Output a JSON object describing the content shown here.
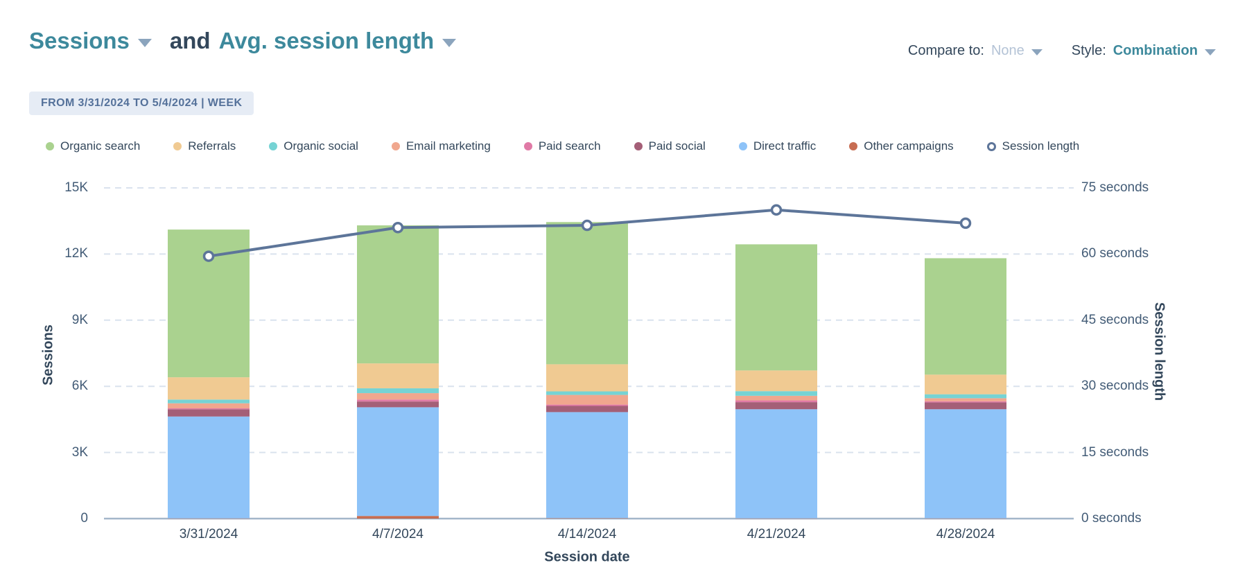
{
  "theme": {
    "accent_teal": "#3d899c",
    "text_dark": "#33475b",
    "tick_text": "#425b76",
    "muted_value": "#b4c3d6",
    "caret": "#8ba4bd",
    "badge_bg": "#e6ecf5",
    "badge_text": "#54719a",
    "gridline": "#d9e2ee",
    "axis_line": "#a3b6c9",
    "line_color": "#5d7599"
  },
  "header": {
    "metric_1": "Sessions",
    "conjunction": "and",
    "metric_2": "Avg. session length",
    "compare_label": "Compare to:",
    "compare_value": "None",
    "style_label": "Style:",
    "style_value": "Combination"
  },
  "date_range_badge": "FROM 3/31/2024 TO 5/4/2024 | WEEK",
  "legend": {
    "items": [
      {
        "label": "Organic search",
        "color": "#aad28f",
        "marker": "dot"
      },
      {
        "label": "Referrals",
        "color": "#f0ca92",
        "marker": "dot"
      },
      {
        "label": "Organic social",
        "color": "#76d3d4",
        "marker": "dot"
      },
      {
        "label": "Email marketing",
        "color": "#f0a78e",
        "marker": "dot"
      },
      {
        "label": "Paid search",
        "color": "#e07aa6",
        "marker": "dot"
      },
      {
        "label": "Paid social",
        "color": "#a45f77",
        "marker": "dot"
      },
      {
        "label": "Direct traffic",
        "color": "#8ec3f8",
        "marker": "dot"
      },
      {
        "label": "Other campaigns",
        "color": "#c76d52",
        "marker": "dot"
      },
      {
        "label": "Session length",
        "color": "#5d7599",
        "marker": "ring"
      }
    ]
  },
  "chart_data": {
    "type": "combination: stacked bar + line",
    "categories": [
      "3/31/2024",
      "4/7/2024",
      "4/14/2024",
      "4/21/2024",
      "4/28/2024"
    ],
    "bar_series_bottom_to_top": [
      {
        "name": "Other campaigns",
        "color": "#c76d52",
        "values": [
          10,
          120,
          20,
          10,
          10
        ]
      },
      {
        "name": "Direct traffic",
        "color": "#8ec3f8",
        "values": [
          4620,
          4930,
          4810,
          4950,
          4950
        ]
      },
      {
        "name": "Paid social",
        "color": "#a45f77",
        "values": [
          330,
          260,
          280,
          320,
          310
        ]
      },
      {
        "name": "Paid search",
        "color": "#e07aa6",
        "values": [
          40,
          90,
          60,
          80,
          50
        ]
      },
      {
        "name": "Email marketing",
        "color": "#f0a78e",
        "values": [
          230,
          290,
          440,
          210,
          140
        ]
      },
      {
        "name": "Organic social",
        "color": "#76d3d4",
        "values": [
          170,
          220,
          160,
          210,
          180
        ]
      },
      {
        "name": "Referrals",
        "color": "#f0ca92",
        "values": [
          1010,
          1130,
          1230,
          940,
          890
        ]
      },
      {
        "name": "Organic search",
        "color": "#aad28f",
        "values": [
          6700,
          6260,
          6450,
          5720,
          5280
        ]
      }
    ],
    "bar_totals": [
      13110,
      13300,
      13450,
      12440,
      11810
    ],
    "line_series": {
      "name": "Session length",
      "color": "#5d7599",
      "values_seconds": [
        59.5,
        66,
        66.5,
        70,
        67
      ]
    },
    "left_axis": {
      "title": "Sessions",
      "ticks": [
        "0",
        "3K",
        "6K",
        "9K",
        "12K",
        "15K"
      ],
      "tick_values": [
        0,
        3000,
        6000,
        9000,
        12000,
        15000
      ],
      "max": 15000
    },
    "right_axis": {
      "title": "Session length",
      "ticks": [
        "0 seconds",
        "15 seconds",
        "30 seconds",
        "45 seconds",
        "60 seconds",
        "75 seconds"
      ],
      "tick_values": [
        0,
        15,
        30,
        45,
        60,
        75
      ],
      "max": 75
    },
    "x_axis": {
      "title": "Session date"
    },
    "grid": "dashed horizontal gridlines, solid baseline, legend top"
  }
}
